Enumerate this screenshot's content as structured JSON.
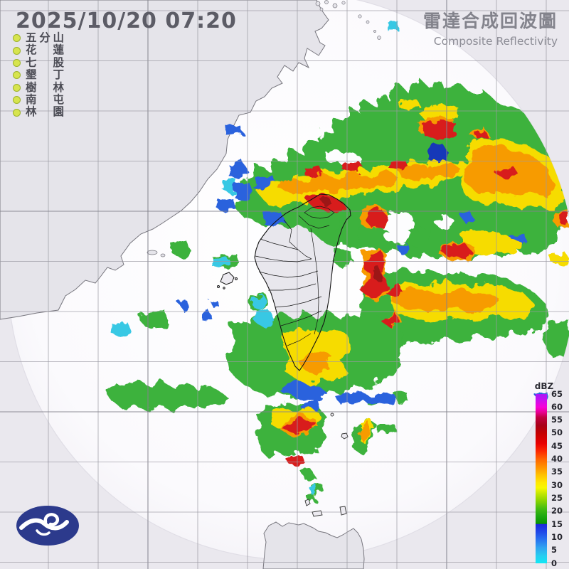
{
  "header": {
    "timestamp": "2025/10/20 07:20",
    "title_zh": "雷達合成回波圖",
    "title_en": "Composite Reflectivity"
  },
  "stations": {
    "dot_color": "#d7e44e",
    "items": [
      "五分山",
      "花蓮",
      "七股",
      "墾丁",
      "樹林",
      "南屯",
      "林園"
    ]
  },
  "legend": {
    "unit": "dBZ",
    "max": 65,
    "min": 0,
    "ticks": [
      65,
      60,
      55,
      50,
      45,
      40,
      35,
      30,
      25,
      20,
      15,
      10,
      5,
      0
    ],
    "stops": [
      {
        "v": 65,
        "c": "#a818f8"
      },
      {
        "v": 63,
        "c": "#c410f0"
      },
      {
        "v": 60,
        "c": "#f800d8"
      },
      {
        "v": 58,
        "c": "#e80090"
      },
      {
        "v": 56,
        "c": "#c00040"
      },
      {
        "v": 53,
        "c": "#a80018"
      },
      {
        "v": 50,
        "c": "#c40000"
      },
      {
        "v": 46,
        "c": "#e80000"
      },
      {
        "v": 43,
        "c": "#fc2800"
      },
      {
        "v": 40,
        "c": "#ff6400"
      },
      {
        "v": 37,
        "c": "#ff9000"
      },
      {
        "v": 34,
        "c": "#ffc000"
      },
      {
        "v": 31,
        "c": "#ffe800"
      },
      {
        "v": 29,
        "c": "#f8f800"
      },
      {
        "v": 27,
        "c": "#c8e800"
      },
      {
        "v": 24,
        "c": "#88d400"
      },
      {
        "v": 21,
        "c": "#44bc10"
      },
      {
        "v": 18,
        "c": "#1ca810"
      },
      {
        "v": 15.2,
        "c": "#089400"
      },
      {
        "v": 15,
        "c": "#1c28dc"
      },
      {
        "v": 12,
        "c": "#2048e8"
      },
      {
        "v": 9,
        "c": "#2874f0"
      },
      {
        "v": 6,
        "c": "#30a4f0"
      },
      {
        "v": 3,
        "c": "#28ccf0"
      },
      {
        "v": 0,
        "c": "#10e8f4"
      }
    ]
  },
  "map": {
    "outside_color": "#eae8ee",
    "sea_color": "#fcfbfe",
    "land_color": "#e5e4ea",
    "coast_color": "#77767e",
    "border_color": "#141414",
    "grid_color": "#9b9aa3",
    "grid_color_dark": "#84838d",
    "echo_palette": {
      "cyan": "#38c8e4",
      "blue": "#2b62dd",
      "dark_blue": "#1837b8",
      "green": "#3cb23c",
      "yellow": "#f6dc00",
      "orange": "#f79b00",
      "red": "#d81e1e",
      "dark_red": "#9c1616"
    }
  },
  "logo": {
    "color": "#2c3a8c"
  }
}
